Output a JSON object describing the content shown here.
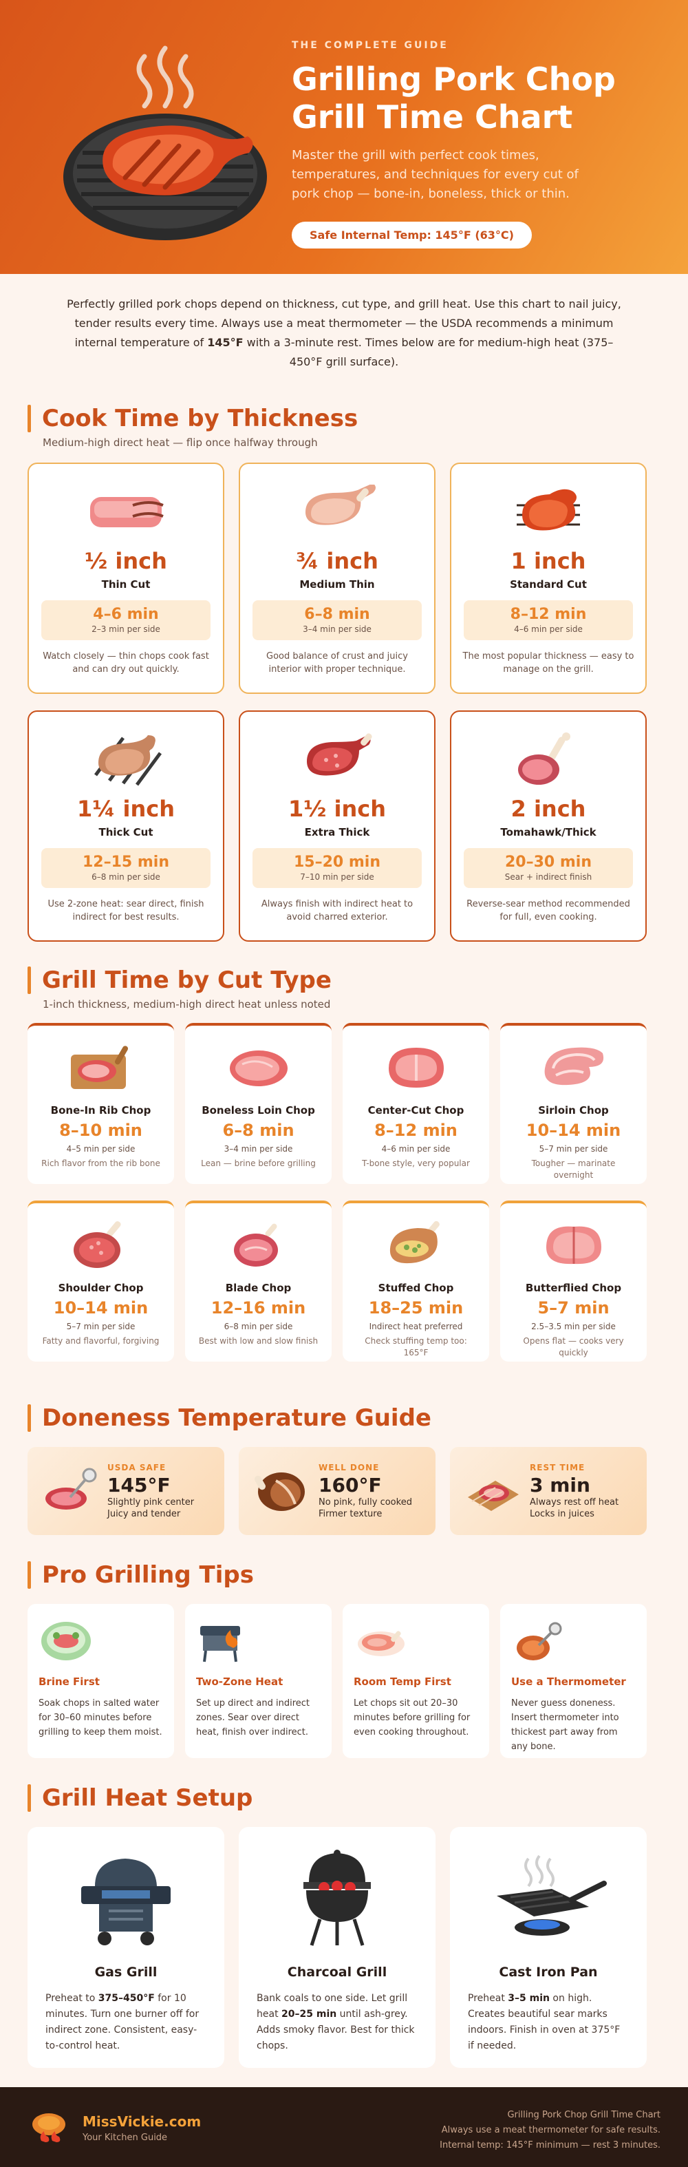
{
  "hero": {
    "eyebrow": "THE COMPLETE GUIDE",
    "title_line1": "Grilling Pork Chop",
    "title_line2": "Grill Time Chart",
    "subtitle": "Master the grill with perfect cook times, temperatures, and techniques for every cut of pork chop — bone-in, boneless, thick or thin.",
    "safe_temp_pill": "Safe Internal Temp: 145°F (63°C)"
  },
  "intro": {
    "part1": "Perfectly grilled pork chops depend on thickness, cut type, and grill heat. Use this chart to nail juicy, tender results every time. Always use a meat thermometer — the USDA recommends a minimum internal temperature of ",
    "bold": "145°F",
    "part2": " with a 3-minute rest. Times below are for medium-high heat (375–450°F grill surface)."
  },
  "thickness": {
    "title": "Cook Time by Thickness",
    "subtitle": "Medium-high direct heat — flip once halfway through",
    "cards": [
      {
        "size": "½ inch",
        "name": "Thin Cut",
        "time": "4–6 min",
        "side": "2–3 min per side",
        "note": "Watch closely — thin chops cook fast and can dry out quickly.",
        "icon": "thin-chop-icon"
      },
      {
        "size": "¾ inch",
        "name": "Medium Thin",
        "time": "6–8 min",
        "side": "3–4 min per side",
        "note": "Good balance of crust and juicy interior with proper technique.",
        "icon": "bone-in-chop-icon"
      },
      {
        "size": "1 inch",
        "name": "Standard Cut",
        "time": "8–12 min",
        "side": "4–6 min per side",
        "note": "The most popular thickness — easy to manage on the grill.",
        "icon": "grilled-chop-icon"
      },
      {
        "size": "1¼ inch",
        "name": "Thick Cut",
        "time": "12–15 min",
        "side": "6–8 min per side",
        "note": "Use 2-zone heat: sear direct, finish indirect for best results.",
        "icon": "grill-marked-chop-icon"
      },
      {
        "size": "1½ inch",
        "name": "Extra Thick",
        "time": "15–20 min",
        "side": "7–10 min per side",
        "note": "Always finish with indirect heat to avoid charred exterior.",
        "icon": "thick-chop-icon"
      },
      {
        "size": "2 inch",
        "name": "Tomahawk/Thick",
        "time": "20–30 min",
        "side": "Sear + indirect finish",
        "note": "Reverse-sear method recommended for full, even cooking.",
        "icon": "tomahawk-chop-icon"
      }
    ]
  },
  "cuts": {
    "title": "Grill Time by Cut Type",
    "subtitle": "1-inch thickness, medium-high direct heat unless noted",
    "cards": [
      {
        "name": "Bone-In Rib Chop",
        "time": "8–10 min",
        "side": "4–5 min per side",
        "note": "Rich flavor from the rib bone",
        "icon": "rib-chop-on-board-icon"
      },
      {
        "name": "Boneless Loin Chop",
        "time": "6–8 min",
        "side": "3–4 min per side",
        "note": "Lean — brine before grilling",
        "icon": "boneless-loin-icon"
      },
      {
        "name": "Center-Cut Chop",
        "time": "8–12 min",
        "side": "4–6 min per side",
        "note": "T-bone style, very popular",
        "icon": "center-cut-chop-icon"
      },
      {
        "name": "Sirloin Chop",
        "time": "10–14 min",
        "side": "5–7 min per side",
        "note": "Tougher — marinate overnight",
        "icon": "sirloin-chop-icon"
      },
      {
        "name": "Shoulder Chop",
        "time": "10–14 min",
        "side": "5–7 min per side",
        "note": "Fatty and flavorful, forgiving",
        "icon": "shoulder-chop-icon"
      },
      {
        "name": "Blade Chop",
        "time": "12–16 min",
        "side": "6–8 min per side",
        "note": "Best with low and slow finish",
        "icon": "blade-chop-icon"
      },
      {
        "name": "Stuffed Chop",
        "time": "18–25 min",
        "side": "Indirect heat preferred",
        "note": "Check stuffing temp too: 165°F",
        "icon": "stuffed-chop-icon"
      },
      {
        "name": "Butterflied Chop",
        "time": "5–7 min",
        "side": "2.5–3.5 min per side",
        "note": "Opens flat — cooks very quickly",
        "icon": "butterflied-chop-icon"
      }
    ]
  },
  "doneness": {
    "title": "Doneness Temperature Guide",
    "cards": [
      {
        "label": "USDA SAFE",
        "temp": "145°F",
        "line1": "Slightly pink center",
        "line2": "Juicy and tender",
        "icon": "thermometer-chop-icon"
      },
      {
        "label": "WELL DONE",
        "temp": "160°F",
        "line1": "No pink, fully cooked",
        "line2": "Firmer texture",
        "icon": "roast-pork-icon"
      },
      {
        "label": "REST TIME",
        "temp": "3 min",
        "line1": "Always rest off heat",
        "line2": "Locks in juices",
        "icon": "resting-chop-icon"
      }
    ]
  },
  "tips": {
    "title": "Pro Grilling Tips",
    "cards": [
      {
        "title": "Brine First",
        "text": "Soak chops in salted water for 30–60 minutes before grilling to keep them moist.",
        "icon": "salad-bowl-icon"
      },
      {
        "title": "Two-Zone Heat",
        "text": "Set up direct and indirect zones. Sear over direct heat, finish over indirect.",
        "icon": "grill-fire-icon"
      },
      {
        "title": "Room Temp First",
        "text": "Let chops sit out 20–30 minutes before grilling for even cooking throughout.",
        "icon": "raw-chop-plate-icon"
      },
      {
        "title": "Use a Thermometer",
        "text": "Never guess doneness. Insert thermometer into thickest part away from any bone.",
        "icon": "meat-thermometer-icon"
      }
    ]
  },
  "setup": {
    "title": "Grill Heat Setup",
    "cards": [
      {
        "title": "Gas Grill",
        "pre": "Preheat to ",
        "bold": "375–450°F",
        "post": " for 10 minutes. Turn one burner off for indirect zone. Consistent, easy-to-control heat.",
        "icon": "gas-grill-icon"
      },
      {
        "title": "Charcoal Grill",
        "pre": "Bank coals to one side. Let grill heat ",
        "bold": "20–25 min",
        "post": " until ash-grey. Adds smoky flavor. Best for thick chops.",
        "icon": "charcoal-kettle-icon"
      },
      {
        "title": "Cast Iron Pan",
        "pre": "Preheat ",
        "bold": "3–5 min",
        "post": " on high. Creates beautiful sear marks indoors. Finish in oven at 375°F if needed.",
        "icon": "grill-pan-icon"
      }
    ]
  },
  "footer": {
    "brand": "MissVickie.com",
    "tagline": "Your Kitchen Guide",
    "line1": "Grilling Pork Chop Grill Time Chart",
    "line2": "Always use a meat thermometer for safe results.",
    "line3": "Internal temp: 145°F minimum — rest 3 minutes."
  },
  "colors": {
    "accent": "#c9501a",
    "orange": "#e8842a",
    "gold": "#f0b35a",
    "footer_bg": "#2a1a13"
  }
}
